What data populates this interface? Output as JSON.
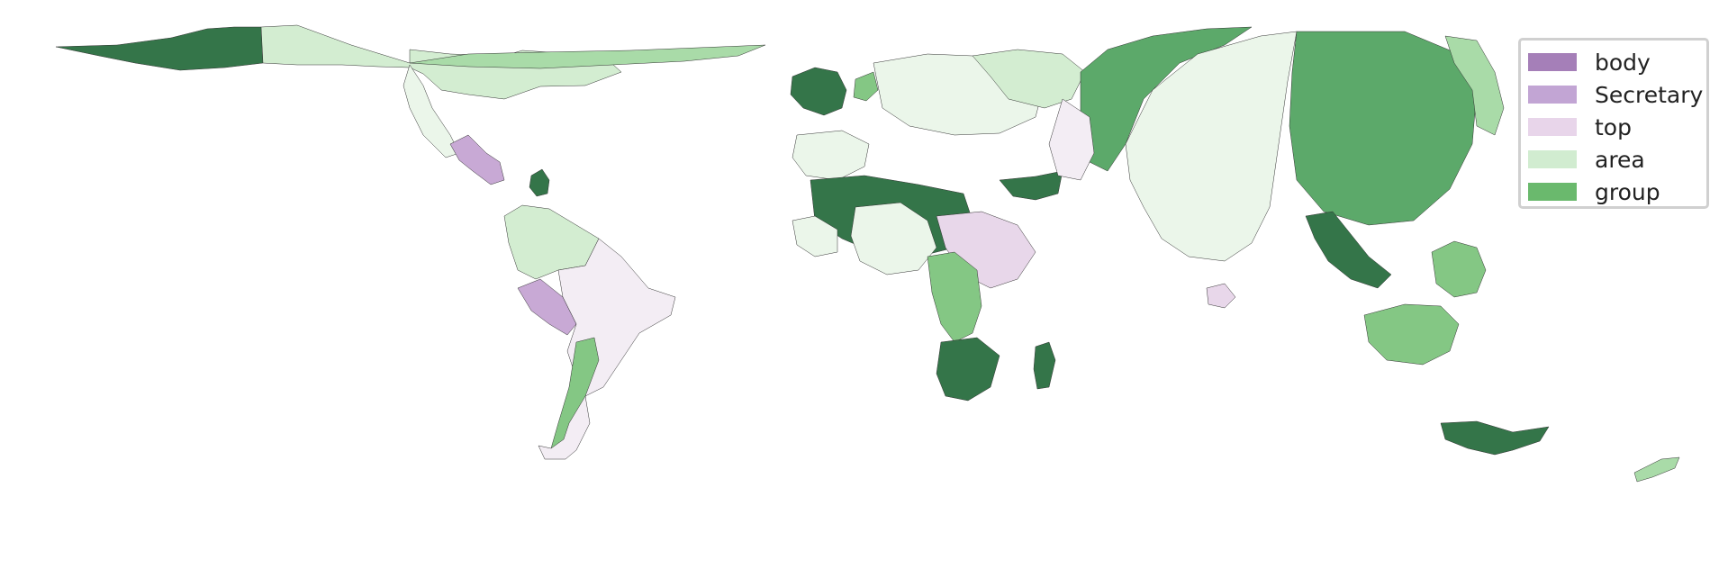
{
  "legend": {
    "items": [
      {
        "label": "body",
        "color": "#a57fb8"
      },
      {
        "label": "Secretary",
        "color": "#c2a5d4"
      },
      {
        "label": "top",
        "color": "#e8d5ea"
      },
      {
        "label": "area",
        "color": "#d1ecd0"
      },
      {
        "label": "group",
        "color": "#6ab96d"
      }
    ]
  },
  "palette": {
    "very_light_purple": "#f3edf4",
    "light_purple": "#e8d7ea",
    "mid_purple": "#c8a9d5",
    "very_light_green": "#ebf6ea",
    "light_green": "#d3edd1",
    "mid_green": "#a9dba8",
    "green": "#84c784",
    "dark_green": "#5ca96a",
    "darkest_green": "#347549"
  },
  "regions": [
    {
      "name": "north-america-west",
      "fill": "darkest_green"
    },
    {
      "name": "north-america-east",
      "fill": "light_green"
    },
    {
      "name": "arctic-canada",
      "fill": "mid_green"
    },
    {
      "name": "mexico",
      "fill": "very_light_green"
    },
    {
      "name": "central-america",
      "fill": "mid_purple"
    },
    {
      "name": "caribbean",
      "fill": "darkest_green"
    },
    {
      "name": "south-america-north",
      "fill": "light_green"
    },
    {
      "name": "brazil",
      "fill": "very_light_purple"
    },
    {
      "name": "peru",
      "fill": "mid_purple"
    },
    {
      "name": "chile",
      "fill": "green"
    },
    {
      "name": "argentina",
      "fill": "very_light_purple"
    },
    {
      "name": "iceland",
      "fill": "darkest_green"
    },
    {
      "name": "scandinavia",
      "fill": "green"
    },
    {
      "name": "europe-central",
      "fill": "very_light_green"
    },
    {
      "name": "europe-east",
      "fill": "light_green"
    },
    {
      "name": "iberia",
      "fill": "very_light_green"
    },
    {
      "name": "west-africa",
      "fill": "darkest_green"
    },
    {
      "name": "sahara",
      "fill": "very_light_green"
    },
    {
      "name": "central-africa",
      "fill": "very_light_green"
    },
    {
      "name": "east-africa",
      "fill": "light_purple"
    },
    {
      "name": "horn-of-africa",
      "fill": "darkest_green"
    },
    {
      "name": "congo",
      "fill": "green"
    },
    {
      "name": "southern-africa",
      "fill": "darkest_green"
    },
    {
      "name": "madagascar",
      "fill": "darkest_green"
    },
    {
      "name": "russia-west",
      "fill": "dark_green"
    },
    {
      "name": "central-asia",
      "fill": "very_light_purple"
    },
    {
      "name": "india",
      "fill": "very_light_green"
    },
    {
      "name": "china",
      "fill": "light_purple"
    },
    {
      "name": "japan-korea",
      "fill": "dark_green"
    },
    {
      "name": "southeast-asia",
      "fill": "mid_green"
    },
    {
      "name": "philippines",
      "fill": "darkest_green"
    },
    {
      "name": "indonesia",
      "fill": "green"
    },
    {
      "name": "australia",
      "fill": "green"
    },
    {
      "name": "new-zealand",
      "fill": "darkest_green"
    },
    {
      "name": "sri-lanka",
      "fill": "mid_green"
    }
  ]
}
